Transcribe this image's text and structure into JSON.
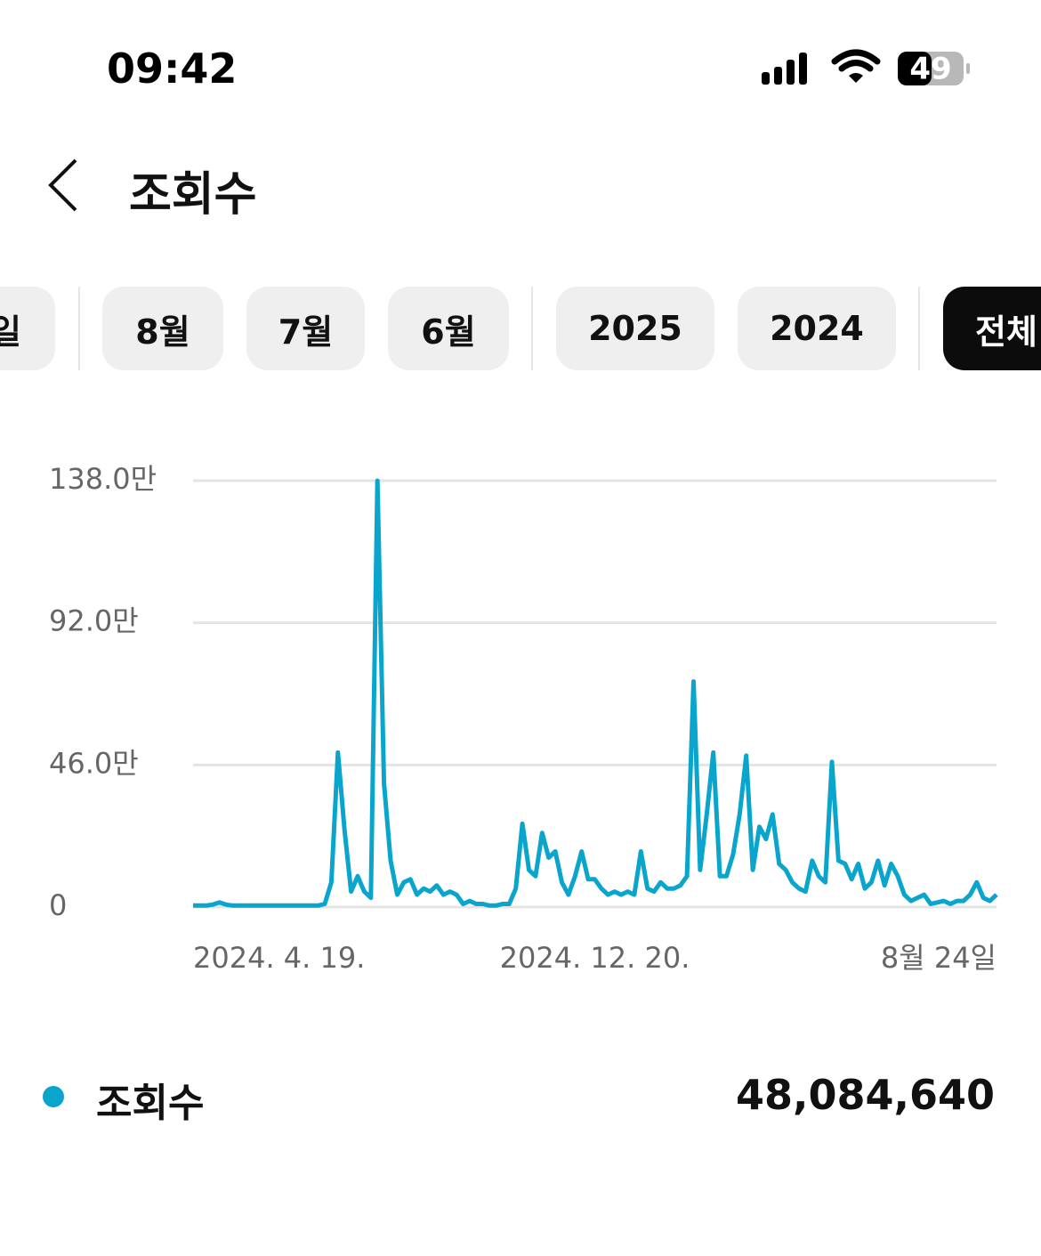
{
  "status_bar": {
    "time": "09:42",
    "battery": "49"
  },
  "header": {
    "title": "조회수"
  },
  "tabs": [
    "일",
    "8월",
    "7월",
    "6월",
    "2025",
    "2024",
    "전체"
  ],
  "selected_tab": "전체",
  "chart_data": {
    "type": "line",
    "categories": [
      "2024. 4. 19.",
      null,
      null,
      null,
      null,
      null,
      null,
      null,
      null,
      null,
      null,
      null,
      null,
      null,
      null,
      null,
      null,
      null,
      null,
      null,
      null,
      null,
      null,
      null,
      null,
      null,
      null,
      null,
      null,
      null,
      null,
      null,
      null,
      null,
      null,
      null,
      null,
      null,
      null,
      null,
      null,
      null,
      null,
      null,
      null,
      null,
      null,
      null,
      null,
      null,
      null,
      null,
      null,
      null,
      null,
      null,
      null,
      null,
      null,
      null,
      null,
      "2024. 12. 20.",
      null,
      null,
      null,
      null,
      null,
      null,
      null,
      null,
      null,
      null,
      null,
      null,
      null,
      null,
      null,
      null,
      null,
      null,
      null,
      null,
      null,
      null,
      null,
      null,
      null,
      null,
      null,
      null,
      null,
      null,
      null,
      null,
      null,
      null,
      null,
      null,
      null,
      null,
      null,
      null,
      null,
      null,
      null,
      null,
      null,
      null,
      null,
      null,
      null,
      null,
      null,
      null,
      null,
      null,
      null,
      null,
      null,
      null,
      null,
      null,
      "8월 24일"
    ],
    "series": [
      {
        "name": "조회수",
        "color": "#0aa5cc",
        "values": [
          0.5,
          0.5,
          0.5,
          0.8,
          1.5,
          0.8,
          0.5,
          0.5,
          0.5,
          0.5,
          0.5,
          0.5,
          0.5,
          0.5,
          0.5,
          0.5,
          0.5,
          0.5,
          0.5,
          0.5,
          1,
          8,
          50,
          25,
          5,
          10,
          5,
          3,
          138,
          40,
          15,
          4,
          8,
          9,
          4,
          6,
          5,
          7,
          4,
          5,
          4,
          1,
          2,
          1,
          1,
          0.5,
          0.5,
          1,
          1,
          6,
          27,
          12,
          10,
          24,
          16,
          18,
          8,
          4,
          10,
          18,
          9,
          9,
          6,
          4,
          5,
          4,
          5,
          4,
          18,
          6,
          5,
          8,
          6,
          6,
          7,
          10,
          73,
          12,
          30,
          50,
          10,
          10,
          17,
          30,
          49,
          12,
          26,
          22,
          30,
          14,
          12,
          8,
          6,
          5,
          15,
          10,
          8,
          47,
          15,
          14,
          9,
          14,
          6,
          8,
          15,
          7,
          14,
          10,
          4,
          2,
          3,
          4,
          1,
          1.5,
          2,
          1,
          2,
          2,
          4,
          8,
          3,
          2,
          4
        ]
      }
    ],
    "ylim": [
      0,
      138
    ],
    "yticks": [
      0,
      {
        "value": 46,
        "label": "46.0만"
      },
      {
        "value": 92,
        "label": "92.0만"
      },
      {
        "value": 138,
        "label": "138.0만"
      }
    ],
    "grid": true
  },
  "summary": {
    "total": "48,084,640"
  }
}
